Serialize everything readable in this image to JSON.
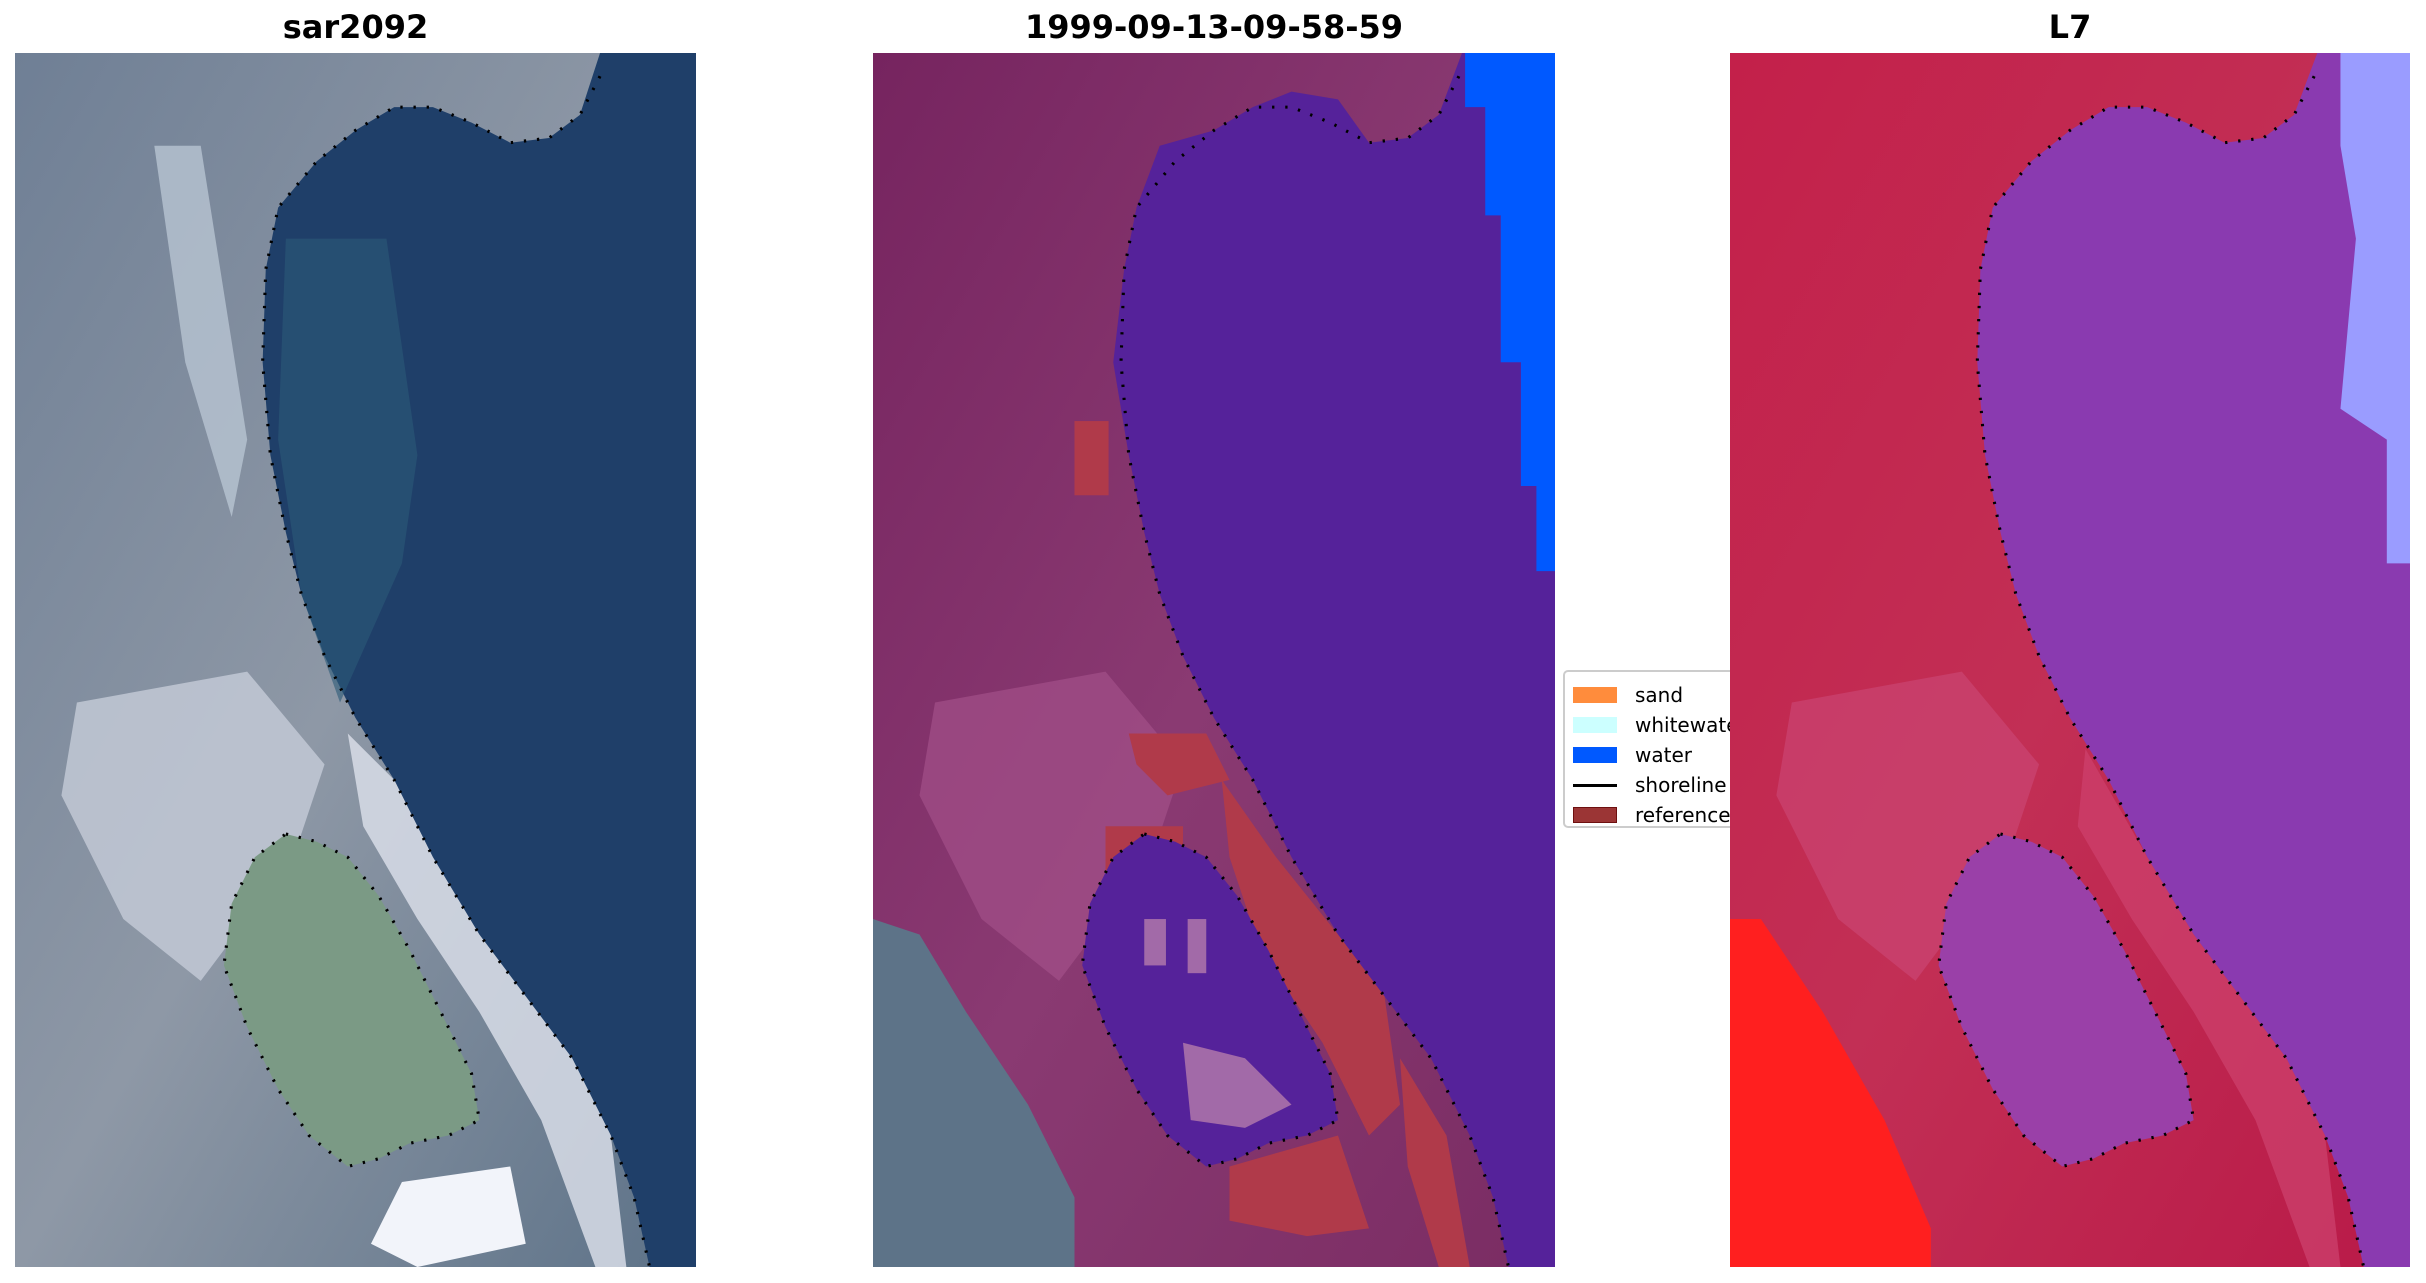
{
  "chart_data": {
    "type": "image-panels",
    "panels": [
      {
        "title": "sar2092"
      },
      {
        "title": "1999-09-13-09-58-59"
      },
      {
        "title": "L7"
      }
    ],
    "legend": {
      "placement": "center-right of middle panel",
      "items": [
        {
          "label": "sand",
          "color": "#ff8c3c",
          "kind": "patch"
        },
        {
          "label": "whitewater",
          "color": "#ccffff",
          "kind": "patch"
        },
        {
          "label": "water",
          "color": "#0059ff",
          "kind": "patch"
        },
        {
          "label": "shoreline",
          "color": "#000000",
          "kind": "line"
        },
        {
          "label": "reference",
          "color": "#9b3535",
          "kind": "patch"
        }
      ]
    }
  }
}
